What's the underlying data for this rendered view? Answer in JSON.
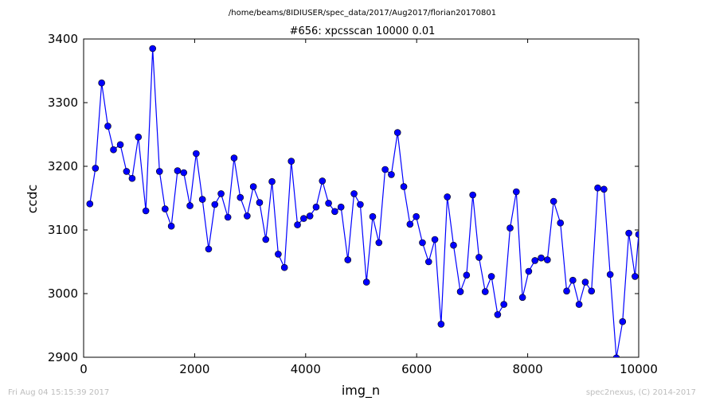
{
  "chart_data": {
    "type": "line",
    "title": "#656: xpcsscan 10000 0.01",
    "subtitle": "/home/beams/8IDIUSER/spec_data/2017/Aug2017/florian20170801",
    "xlabel": "img_n",
    "ylabel": "ccdc",
    "xlim": [
      0,
      10000
    ],
    "ylim": [
      2900,
      3400
    ],
    "xticks": [
      0,
      2000,
      4000,
      6000,
      8000,
      10000
    ],
    "yticks": [
      2900,
      3000,
      3100,
      3200,
      3300,
      3400
    ],
    "xtick_labels": [
      "0",
      "2000",
      "4000",
      "6000",
      "8000",
      "10000"
    ],
    "ytick_labels": [
      "2900",
      "3000",
      "3100",
      "3200",
      "3300",
      "3400"
    ],
    "grid": false,
    "line_color": "#0000ff",
    "marker_color": "#0000ff",
    "series": [
      {
        "x": [
          112,
          213,
          325,
          437,
          538,
          661,
          773,
          874,
          986,
          1121,
          1244,
          1367,
          1468,
          1580,
          1692,
          1804,
          1916,
          2028,
          2140,
          2252,
          2364,
          2476,
          2599,
          2711,
          2823,
          2946,
          3058,
          3170,
          3282,
          3394,
          3506,
          3618,
          3741,
          3853,
          3965,
          4077,
          4189,
          4301,
          4413,
          4525,
          4637,
          4760,
          4872,
          4984,
          5096,
          5208,
          5320,
          5432,
          5544,
          5656,
          5768,
          5880,
          5992,
          6104,
          6216,
          6328,
          6440,
          6552,
          6664,
          6787,
          6899,
          7011,
          7123,
          7235,
          7347,
          7459,
          7571,
          7683,
          7795,
          7907,
          8019,
          8131,
          8243,
          8355,
          8467,
          8590,
          8702,
          8814,
          8926,
          9038,
          9150,
          9262,
          9374,
          9486,
          9598,
          9710,
          9822,
          9934,
          10000
        ],
        "y": [
          3141,
          3197,
          3331,
          3263,
          3226,
          3234,
          3192,
          3181,
          3246,
          3130,
          3385,
          3192,
          3133,
          3106,
          3193,
          3190,
          3138,
          3220,
          3148,
          3070,
          3140,
          3157,
          3120,
          3213,
          3151,
          3122,
          3168,
          3143,
          3085,
          3176,
          3062,
          3041,
          3208,
          3108,
          3118,
          3122,
          3136,
          3177,
          3142,
          3129,
          3136,
          3053,
          3157,
          3140,
          3018,
          3121,
          3080,
          3195,
          3187,
          3253,
          3168,
          3109,
          3121,
          3080,
          3050,
          3085,
          2952,
          3152,
          3076,
          3003,
          3029,
          3155,
          3057,
          3003,
          3027,
          2967,
          2983,
          3103,
          3160,
          2994,
          3035,
          3052,
          3056,
          3053,
          3145,
          3111,
          3004,
          3021,
          2983,
          3018,
          3004,
          3166,
          3164,
          3030,
          2899,
          2956,
          3095,
          3027,
          3093
        ]
      }
    ]
  },
  "footer": {
    "timestamp": "Fri Aug 04 15:15:39 2017",
    "credit": "spec2nexus, (C) 2014-2017"
  }
}
